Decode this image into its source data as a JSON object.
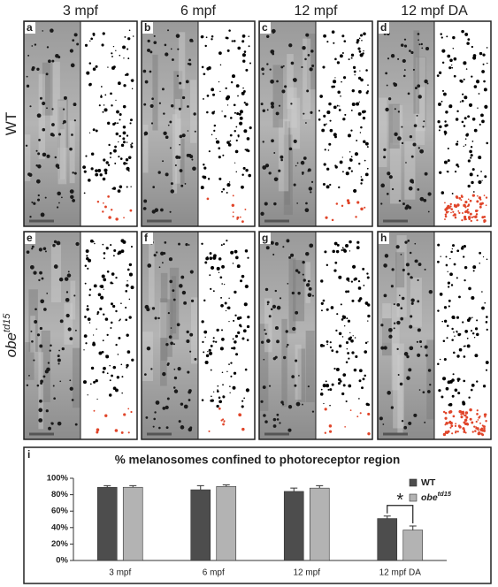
{
  "panels": {
    "column_labels": [
      "3 mpf",
      "6 mpf",
      "12 mpf",
      "12 mpf DA"
    ],
    "row_labels": [
      {
        "text": "WT"
      },
      {
        "text": "obe",
        "superscript": "td15"
      }
    ],
    "letters": [
      "a",
      "b",
      "c",
      "d",
      "e",
      "f",
      "g",
      "h"
    ]
  },
  "chart_data": {
    "panel_letter": "i",
    "type": "bar",
    "title": "% melanosomes confined to photoreceptor region",
    "categories": [
      "3 mpf",
      "6 mpf",
      "12 mpf",
      "12 mpf DA"
    ],
    "series": [
      {
        "name": "WT",
        "color": "#4d4d4d",
        "values": [
          89,
          86,
          84,
          51
        ],
        "errors": [
          2,
          5,
          4,
          3
        ]
      },
      {
        "name": "obe",
        "name_superscript": "td15",
        "color": "#b3b3b3",
        "values": [
          89,
          90,
          88,
          37
        ],
        "errors": [
          2,
          2,
          3,
          5
        ]
      }
    ],
    "ylim": [
      0,
      100
    ],
    "yticks": [
      {
        "value": 0,
        "label": "0%"
      },
      {
        "value": 20,
        "label": "20%"
      },
      {
        "value": 40,
        "label": "40%"
      },
      {
        "value": 60,
        "label": "60%"
      },
      {
        "value": 80,
        "label": "80%"
      },
      {
        "value": 100,
        "label": "100%"
      }
    ],
    "legend": "upper right",
    "annotation": "*"
  }
}
